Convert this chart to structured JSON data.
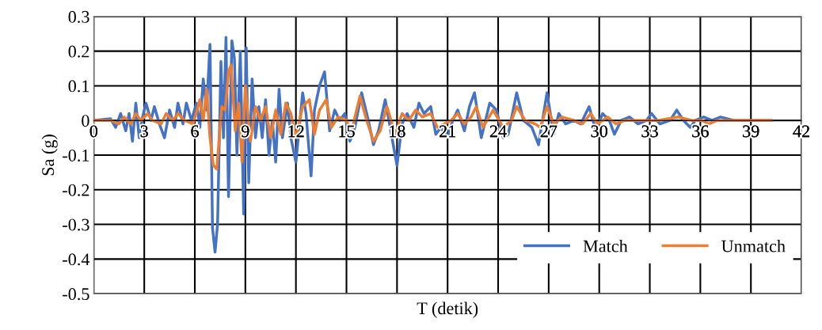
{
  "chart_data": {
    "type": "line",
    "xlabel": "T (detik)",
    "ylabel": "Sa (g)",
    "xlim": [
      0,
      42
    ],
    "xticks": [
      0,
      3,
      6,
      9,
      12,
      15,
      18,
      21,
      24,
      27,
      30,
      33,
      36,
      39,
      42
    ],
    "ylim": [
      -0.5,
      0.3
    ],
    "yticks": [
      0.3,
      0.2,
      0.1,
      0,
      -0.1,
      -0.2,
      -0.3,
      -0.4,
      -0.5
    ],
    "grid": true,
    "legend": "bottom right",
    "marker": "none",
    "line_style": "solid",
    "series": [
      {
        "name": "Match",
        "color": "#4472c4",
        "x": [
          0,
          1,
          1.3,
          1.6,
          1.9,
          2.1,
          2.3,
          2.5,
          2.7,
          2.9,
          3.1,
          3.4,
          3.6,
          3.9,
          4.2,
          4.5,
          4.8,
          5.0,
          5.3,
          5.5,
          5.8,
          6.1,
          6.3,
          6.5,
          6.7,
          6.9,
          7.05,
          7.2,
          7.35,
          7.55,
          7.7,
          7.85,
          8.0,
          8.2,
          8.35,
          8.5,
          8.7,
          8.9,
          9.05,
          9.2,
          9.4,
          9.6,
          9.8,
          10.0,
          10.2,
          10.4,
          10.6,
          10.8,
          11.0,
          11.2,
          11.5,
          11.7,
          12.0,
          12.4,
          12.6,
          12.9,
          13.1,
          13.4,
          13.7,
          14.0,
          14.3,
          14.6,
          14.9,
          15.2,
          15.5,
          15.9,
          16.3,
          16.6,
          16.9,
          17.3,
          17.7,
          18.0,
          18.3,
          18.6,
          19.0,
          19.3,
          19.6,
          20.0,
          20.3,
          20.6,
          21.0,
          21.3,
          21.6,
          22.0,
          22.3,
          22.6,
          23.0,
          23.5,
          23.9,
          24.3,
          24.6,
          25.1,
          25.5,
          26.0,
          26.4,
          26.9,
          27.3,
          27.6,
          28.0,
          28.5,
          28.9,
          29.4,
          29.8,
          30.2,
          30.6,
          30.9,
          31.3,
          31.8,
          32.3,
          32.8,
          33.1,
          33.6,
          34.2,
          34.6,
          35.0,
          35.4,
          35.7,
          36.2,
          36.7,
          37.2,
          38.0,
          40.2
        ],
        "values": [
          0,
          0.005,
          -0.02,
          0.02,
          -0.03,
          0.02,
          -0.06,
          0.05,
          -0.05,
          0.01,
          0.05,
          0.0,
          0.04,
          -0.01,
          -0.05,
          0.03,
          -0.02,
          0.05,
          -0.01,
          0.05,
          0.0,
          0.05,
          -0.02,
          0.12,
          0.03,
          0.22,
          -0.31,
          -0.38,
          -0.3,
          0.17,
          -0.05,
          0.24,
          -0.22,
          0.23,
          0.18,
          -0.1,
          0.2,
          -0.27,
          0.21,
          -0.18,
          0.12,
          -0.05,
          0.04,
          -0.05,
          0.06,
          -0.1,
          0.0,
          -0.12,
          0.09,
          -0.05,
          0.05,
          -0.05,
          -0.12,
          0.08,
          0.02,
          -0.16,
          0.03,
          0.1,
          0.14,
          -0.03,
          0.03,
          0.0,
          0.02,
          -0.06,
          -0.02,
          0.08,
          0.0,
          -0.07,
          -0.03,
          0.06,
          -0.05,
          -0.13,
          -0.01,
          0.02,
          -0.02,
          0.05,
          0.02,
          0.04,
          -0.04,
          -0.02,
          -0.05,
          0.0,
          0.03,
          -0.03,
          0.04,
          0.08,
          -0.05,
          0.05,
          0.03,
          -0.05,
          -0.04,
          0.08,
          0.0,
          -0.02,
          -0.07,
          0.08,
          -0.04,
          0.02,
          -0.01,
          0.0,
          -0.01,
          0.04,
          -0.03,
          0.02,
          0.0,
          -0.04,
          0.0,
          0.01,
          -0.01,
          0.0,
          0.02,
          -0.01,
          0.0,
          0.03,
          0.0,
          -0.02,
          0.0,
          0.01,
          0.0,
          0.01,
          0.0,
          0.0
        ]
      },
      {
        "name": "Unmatch",
        "color": "#ed7d31",
        "x": [
          0,
          1,
          1.5,
          1.8,
          2.2,
          2.5,
          2.8,
          3.2,
          3.5,
          4.0,
          4.3,
          4.7,
          5.0,
          5.4,
          5.9,
          6.3,
          6.5,
          6.7,
          6.9,
          7.1,
          7.3,
          7.6,
          7.8,
          8.0,
          8.15,
          8.4,
          8.6,
          8.8,
          9.0,
          9.3,
          9.6,
          9.9,
          10.2,
          10.5,
          10.8,
          11.1,
          11.4,
          11.7,
          12.0,
          12.4,
          12.8,
          13.1,
          13.4,
          13.8,
          14.1,
          14.5,
          15.0,
          15.3,
          15.8,
          16.2,
          16.6,
          17.0,
          17.4,
          17.9,
          18.3,
          18.7,
          19.1,
          19.5,
          20.0,
          20.4,
          20.8,
          21.2,
          21.6,
          22.0,
          22.4,
          22.7,
          23.1,
          23.7,
          24.3,
          24.8,
          25.1,
          25.6,
          26.2,
          26.5,
          26.9,
          27.3,
          27.8,
          28.5,
          29.0,
          29.5,
          29.9,
          30.5,
          31.0,
          31.5,
          32.5,
          33.5,
          34.7,
          35.5,
          36.1,
          36.5,
          37.0,
          38.0,
          40.2
        ],
        "values": [
          0,
          0,
          -0.01,
          0.01,
          -0.01,
          0.02,
          0.0,
          0.02,
          0.0,
          -0.01,
          0.02,
          0.0,
          0.02,
          0.0,
          -0.01,
          0.06,
          0.0,
          0.09,
          -0.05,
          -0.13,
          -0.14,
          0.04,
          0.03,
          0.14,
          0.16,
          -0.03,
          0.05,
          -0.12,
          0.1,
          -0.06,
          0.04,
          0.0,
          0.04,
          -0.05,
          0.03,
          -0.04,
          0.05,
          0.02,
          -0.05,
          0.04,
          0.06,
          -0.04,
          0.03,
          0.06,
          -0.02,
          0.01,
          0.0,
          -0.03,
          0.07,
          0.0,
          -0.06,
          -0.03,
          0.04,
          -0.04,
          0.02,
          0.0,
          0.03,
          0.01,
          0.02,
          -0.02,
          -0.01,
          0.0,
          0.02,
          -0.01,
          0.01,
          0.04,
          -0.02,
          0.03,
          -0.02,
          0.0,
          0.04,
          0.0,
          -0.01,
          -0.02,
          0.04,
          -0.01,
          0.01,
          0.0,
          -0.01,
          0.02,
          -0.01,
          0.01,
          -0.01,
          0.0,
          0.0,
          0.0,
          0.01,
          0.0,
          0.0,
          -0.01,
          0.0,
          0.0,
          0.0
        ]
      }
    ]
  }
}
